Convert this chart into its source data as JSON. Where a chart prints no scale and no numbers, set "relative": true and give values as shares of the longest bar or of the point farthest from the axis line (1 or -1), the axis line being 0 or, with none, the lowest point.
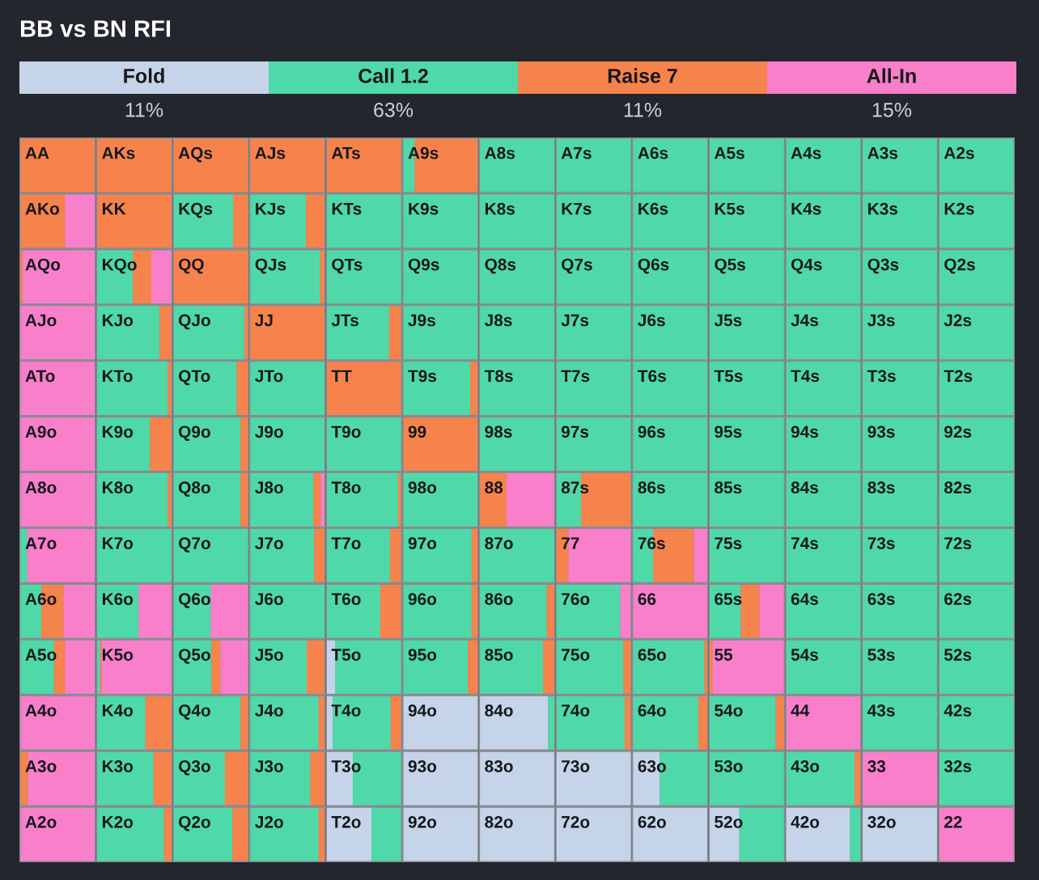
{
  "chart_data": [
    {
      "type": "other",
      "title": "BB vs BN RFI",
      "categories": [
        "Fold",
        "Call 1.2",
        "Raise 7",
        "All-In"
      ],
      "colors": [
        "#c5d4e8",
        "#4fd9a8",
        "#f6834b",
        "#f97fcb"
      ],
      "annotations": [
        "11%",
        "63%",
        "11%",
        "15%"
      ]
    },
    {
      "type": "bar",
      "orientation": "horizontal",
      "stacked": true,
      "relative": true,
      "categories": [
        "AA",
        "AKo",
        "AQo",
        "AJo",
        "ATo",
        "A9o",
        "A8o",
        "A7o",
        "A6o",
        "A5o",
        "A4o",
        "A3o",
        "A2o"
      ],
      "series": [
        {
          "color": "#4fd9a8",
          "values": [
            null,
            null,
            null,
            null,
            null,
            null,
            null,
            0.09,
            0.28,
            0.45,
            null,
            null,
            null
          ]
        },
        {
          "color": "#f6834b",
          "values": [
            1,
            0.6,
            0.03,
            null,
            null,
            null,
            null,
            null,
            0.3,
            0.15,
            null,
            0.1,
            null
          ]
        },
        {
          "color": "#f97fcb",
          "values": [
            null,
            0.4,
            0.97,
            1,
            1,
            1,
            1,
            0.91,
            0.42,
            0.4,
            1,
            0.9,
            1
          ]
        }
      ]
    },
    {
      "type": "bar",
      "orientation": "horizontal",
      "stacked": true,
      "relative": true,
      "categories": [
        "AKs",
        "KK",
        "KQo",
        "KJo",
        "KTo",
        "K9o",
        "K8o",
        "K7o",
        "K6o",
        "K5o",
        "K4o",
        "K3o",
        "K2o"
      ],
      "series": [
        {
          "color": "#4fd9a8",
          "values": [
            null,
            null,
            0.48,
            0.84,
            0.95,
            0.71,
            0.95,
            1,
            0.56,
            0.04,
            0.65,
            0.76,
            0.9
          ]
        },
        {
          "color": "#f6834b",
          "values": [
            1,
            1,
            0.25,
            0.16,
            0.05,
            0.29,
            0.05,
            null,
            null,
            0.02,
            0.35,
            0.24,
            0.1
          ]
        },
        {
          "color": "#f97fcb",
          "values": [
            null,
            null,
            0.27,
            null,
            null,
            null,
            null,
            null,
            0.44,
            0.94,
            null,
            null,
            null
          ]
        }
      ]
    },
    {
      "type": "bar",
      "orientation": "horizontal",
      "stacked": true,
      "relative": true,
      "categories": [
        "AQs",
        "KQs",
        "QQ",
        "QJo",
        "QTo",
        "Q9o",
        "Q8o",
        "Q7o",
        "Q6o",
        "Q5o",
        "Q4o",
        "Q3o",
        "Q2o"
      ],
      "series": [
        {
          "color": "#4fd9a8",
          "values": [
            null,
            0.8,
            null,
            0.95,
            0.85,
            0.9,
            0.9,
            1,
            0.5,
            0.51,
            0.9,
            0.69,
            0.79
          ]
        },
        {
          "color": "#f6834b",
          "values": [
            1,
            0.2,
            1,
            0.05,
            0.15,
            0.1,
            0.1,
            null,
            null,
            0.12,
            0.1,
            0.31,
            0.21
          ]
        },
        {
          "color": "#f97fcb",
          "values": [
            null,
            null,
            null,
            null,
            null,
            null,
            null,
            null,
            0.5,
            0.37,
            null,
            null,
            null
          ]
        }
      ]
    },
    {
      "type": "bar",
      "orientation": "horizontal",
      "stacked": true,
      "relative": true,
      "categories": [
        "AJs",
        "KJs",
        "QJs",
        "JJ",
        "JTo",
        "J9o",
        "J8o",
        "J7o",
        "J6o",
        "J5o",
        "J4o",
        "J3o",
        "J2o"
      ],
      "series": [
        {
          "color": "#4fd9a8",
          "values": [
            null,
            0.75,
            0.94,
            null,
            1,
            1,
            0.85,
            0.86,
            1,
            0.76,
            0.92,
            0.81,
            0.92
          ]
        },
        {
          "color": "#f6834b",
          "values": [
            1,
            0.25,
            0.06,
            1,
            null,
            null,
            0.1,
            0.14,
            null,
            0.24,
            0.08,
            0.19,
            0.08
          ]
        },
        {
          "color": "#f97fcb",
          "values": [
            null,
            null,
            null,
            null,
            null,
            null,
            0.05,
            null,
            null,
            null,
            null,
            null,
            null
          ]
        }
      ]
    },
    {
      "type": "bar",
      "orientation": "horizontal",
      "stacked": true,
      "relative": true,
      "categories": [
        "ATs",
        "KTs",
        "QTs",
        "JTs",
        "TT",
        "T9o",
        "T8o",
        "T7o",
        "T6o",
        "T5o",
        "T4o",
        "T3o",
        "T2o"
      ],
      "series": [
        {
          "color": "#c5d4e8",
          "values": [
            null,
            null,
            null,
            null,
            null,
            null,
            null,
            null,
            null,
            0.11,
            0.08,
            0.35,
            0.6
          ]
        },
        {
          "color": "#4fd9a8",
          "values": [
            null,
            1,
            1,
            0.84,
            null,
            1,
            0.96,
            0.85,
            0.72,
            0.89,
            0.78,
            0.65,
            0.4
          ]
        },
        {
          "color": "#f6834b",
          "values": [
            1,
            null,
            null,
            0.16,
            1,
            null,
            0.04,
            0.15,
            0.28,
            null,
            0.14,
            null,
            null
          ]
        }
      ]
    },
    {
      "type": "bar",
      "orientation": "horizontal",
      "stacked": true,
      "relative": true,
      "categories": [
        "A9s",
        "K9s",
        "Q9s",
        "J9s",
        "T9s",
        "99",
        "98o",
        "97o",
        "96o",
        "95o",
        "94o",
        "93o",
        "92o"
      ],
      "series": [
        {
          "color": "#c5d4e8",
          "values": [
            null,
            null,
            null,
            null,
            null,
            null,
            null,
            null,
            null,
            null,
            1,
            1,
            1
          ]
        },
        {
          "color": "#4fd9a8",
          "values": [
            0.15,
            1,
            1,
            1,
            0.9,
            null,
            1,
            0.92,
            0.92,
            0.87,
            null,
            null,
            null
          ]
        },
        {
          "color": "#f6834b",
          "values": [
            0.85,
            null,
            null,
            null,
            0.1,
            1,
            null,
            0.08,
            0.08,
            0.13,
            null,
            null,
            null
          ]
        }
      ]
    },
    {
      "type": "bar",
      "orientation": "horizontal",
      "stacked": true,
      "relative": true,
      "categories": [
        "A8s",
        "K8s",
        "Q8s",
        "J8s",
        "T8s",
        "98s",
        "88",
        "87o",
        "86o",
        "85o",
        "84o",
        "83o",
        "82o"
      ],
      "series": [
        {
          "color": "#c5d4e8",
          "values": [
            null,
            null,
            null,
            null,
            null,
            null,
            null,
            null,
            null,
            null,
            0.92,
            1,
            1
          ]
        },
        {
          "color": "#4fd9a8",
          "values": [
            1,
            1,
            1,
            1,
            1,
            1,
            null,
            1,
            0.9,
            0.85,
            0.08,
            null,
            null
          ]
        },
        {
          "color": "#f6834b",
          "values": [
            null,
            null,
            null,
            null,
            null,
            null,
            0.36,
            null,
            0.1,
            0.15,
            null,
            null,
            null
          ]
        },
        {
          "color": "#f97fcb",
          "values": [
            null,
            null,
            null,
            null,
            null,
            null,
            0.64,
            null,
            null,
            null,
            null,
            null,
            null
          ]
        }
      ]
    },
    {
      "type": "bar",
      "orientation": "horizontal",
      "stacked": true,
      "relative": true,
      "categories": [
        "A7s",
        "K7s",
        "Q7s",
        "J7s",
        "T7s",
        "97s",
        "87s",
        "77",
        "76o",
        "75o",
        "74o",
        "73o",
        "72o"
      ],
      "series": [
        {
          "color": "#c5d4e8",
          "values": [
            null,
            null,
            null,
            null,
            null,
            null,
            null,
            null,
            null,
            null,
            null,
            1,
            1
          ]
        },
        {
          "color": "#4fd9a8",
          "values": [
            1,
            1,
            1,
            1,
            1,
            1,
            0.33,
            null,
            0.86,
            0.9,
            0.92,
            null,
            null
          ]
        },
        {
          "color": "#f6834b",
          "values": [
            null,
            null,
            null,
            null,
            null,
            null,
            0.67,
            0.16,
            null,
            0.1,
            0.08,
            null,
            null
          ]
        },
        {
          "color": "#f97fcb",
          "values": [
            null,
            null,
            null,
            null,
            null,
            null,
            null,
            0.84,
            0.14,
            null,
            null,
            null,
            null
          ]
        }
      ]
    },
    {
      "type": "bar",
      "orientation": "horizontal",
      "stacked": true,
      "relative": true,
      "categories": [
        "A6s",
        "K6s",
        "Q6s",
        "J6s",
        "T6s",
        "96s",
        "86s",
        "76s",
        "66",
        "65o",
        "64o",
        "63o",
        "62o"
      ],
      "series": [
        {
          "color": "#c5d4e8",
          "values": [
            null,
            null,
            null,
            null,
            null,
            null,
            null,
            null,
            null,
            null,
            null,
            0.36,
            1
          ]
        },
        {
          "color": "#4fd9a8",
          "values": [
            1,
            1,
            1,
            1,
            1,
            1,
            1,
            0.27,
            null,
            0.96,
            0.88,
            0.64,
            null
          ]
        },
        {
          "color": "#f6834b",
          "values": [
            null,
            null,
            null,
            null,
            null,
            null,
            null,
            0.55,
            null,
            0.04,
            0.12,
            null,
            null
          ]
        },
        {
          "color": "#f97fcb",
          "values": [
            null,
            null,
            null,
            null,
            null,
            null,
            null,
            0.18,
            1,
            null,
            null,
            null,
            null
          ]
        }
      ]
    },
    {
      "type": "bar",
      "orientation": "horizontal",
      "stacked": true,
      "relative": true,
      "categories": [
        "A5s",
        "K5s",
        "Q5s",
        "J5s",
        "T5s",
        "95s",
        "85s",
        "75s",
        "65s",
        "55",
        "54o",
        "53o",
        "52o"
      ],
      "series": [
        {
          "color": "#c5d4e8",
          "values": [
            null,
            null,
            null,
            null,
            null,
            null,
            null,
            null,
            null,
            null,
            null,
            null,
            0.4
          ]
        },
        {
          "color": "#4fd9a8",
          "values": [
            1,
            1,
            1,
            1,
            1,
            1,
            1,
            1,
            0.42,
            null,
            0.89,
            1,
            0.6
          ]
        },
        {
          "color": "#f6834b",
          "values": [
            null,
            null,
            null,
            null,
            null,
            null,
            null,
            null,
            0.25,
            0.04,
            0.11,
            null,
            null
          ]
        },
        {
          "color": "#f97fcb",
          "values": [
            null,
            null,
            null,
            null,
            null,
            null,
            null,
            null,
            0.33,
            0.96,
            null,
            null,
            null
          ]
        }
      ]
    },
    {
      "type": "bar",
      "orientation": "horizontal",
      "stacked": true,
      "relative": true,
      "categories": [
        "A4s",
        "K4s",
        "Q4s",
        "J4s",
        "T4s",
        "94s",
        "84s",
        "74s",
        "64s",
        "54s",
        "44",
        "43o",
        "42o"
      ],
      "series": [
        {
          "color": "#c5d4e8",
          "values": [
            null,
            null,
            null,
            null,
            null,
            null,
            null,
            null,
            null,
            null,
            null,
            null,
            0.86
          ]
        },
        {
          "color": "#4fd9a8",
          "values": [
            1,
            1,
            1,
            1,
            1,
            1,
            1,
            1,
            1,
            1,
            null,
            0.92,
            0.14
          ]
        },
        {
          "color": "#f6834b",
          "values": [
            null,
            null,
            null,
            null,
            null,
            null,
            null,
            null,
            null,
            null,
            null,
            0.08,
            null
          ]
        },
        {
          "color": "#f97fcb",
          "values": [
            null,
            null,
            null,
            null,
            null,
            null,
            null,
            null,
            null,
            null,
            1,
            null,
            null
          ]
        }
      ]
    },
    {
      "type": "bar",
      "orientation": "horizontal",
      "stacked": true,
      "relative": true,
      "categories": [
        "A3s",
        "K3s",
        "Q3s",
        "J3s",
        "T3s",
        "93s",
        "83s",
        "73s",
        "63s",
        "53s",
        "43s",
        "33",
        "32o"
      ],
      "series": [
        {
          "color": "#c5d4e8",
          "values": [
            null,
            null,
            null,
            null,
            null,
            null,
            null,
            null,
            null,
            null,
            null,
            null,
            1
          ]
        },
        {
          "color": "#4fd9a8",
          "values": [
            1,
            1,
            1,
            1,
            1,
            1,
            1,
            1,
            1,
            1,
            1,
            null,
            null
          ]
        },
        {
          "color": "#f97fcb",
          "values": [
            null,
            null,
            null,
            null,
            null,
            null,
            null,
            null,
            null,
            null,
            null,
            1,
            null
          ]
        }
      ]
    },
    {
      "type": "bar",
      "orientation": "horizontal",
      "stacked": true,
      "relative": true,
      "categories": [
        "A2s",
        "K2s",
        "Q2s",
        "J2s",
        "T2s",
        "92s",
        "82s",
        "72s",
        "62s",
        "52s",
        "42s",
        "32s",
        "22"
      ],
      "series": [
        {
          "color": "#4fd9a8",
          "values": [
            1,
            1,
            1,
            1,
            1,
            1,
            1,
            1,
            1,
            1,
            1,
            1,
            null
          ]
        },
        {
          "color": "#f97fcb",
          "values": [
            null,
            null,
            null,
            null,
            null,
            null,
            null,
            null,
            null,
            null,
            null,
            null,
            1
          ]
        }
      ]
    }
  ]
}
